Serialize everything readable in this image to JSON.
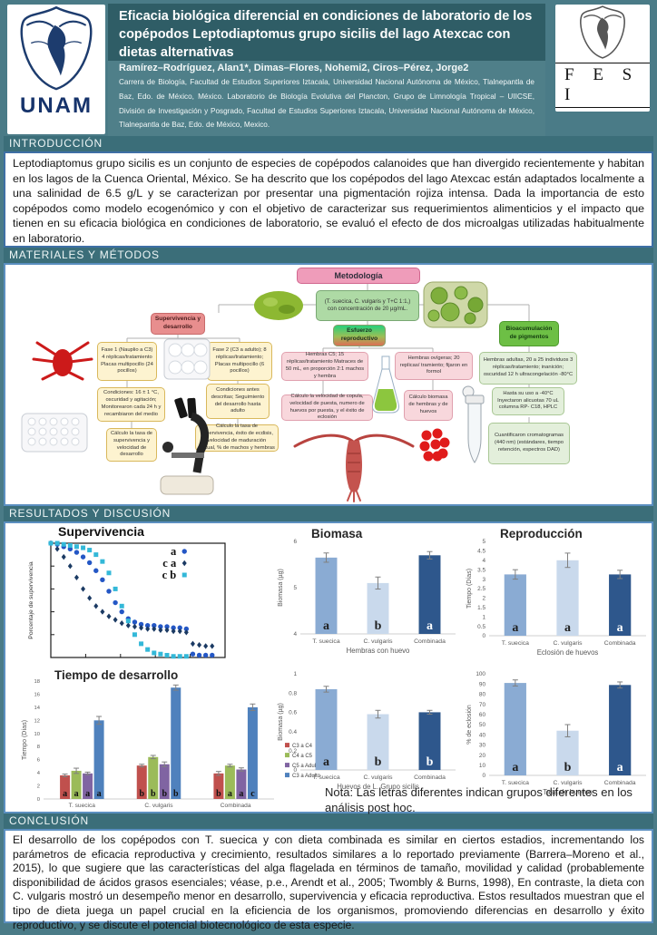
{
  "header": {
    "title": "Eficacia biológica diferencial en condiciones de laboratorio de los copépodos Leptodiaptomus grupo sicilis del lago Atexcac con dietas alternativas",
    "authors": "Ramírez–Rodríguez, Alan1*, Dimas–Flores, Nohemi2, Ciros–Pérez, Jorge2",
    "affiliation": "Carrera de Biología, Facultad de Estudios Superiores Iztacala, Universidad Nacional Autónoma de México, Tlalnepantla de Baz, Edo. de México, México. Laboratorio de Biología Evolutiva del Plancton, Grupo de Limnología Tropical – UIICSE, División de Investigación y Posgrado, Facultad de Estudios Superiores Iztacala, Universidad Nacional Autónoma de México, Tlalnepantla de Baz, Edo. de México, Mexico.",
    "logo_left_text": "UNAM",
    "logo_right_text": "F E S I"
  },
  "sections": {
    "intro": "INTRODUCCIÓN",
    "methods": "MATERIALES Y MÉTODOS",
    "results": "RESULTADOS Y DISCUSIÓN",
    "conclusion": "CONCLUSIÓN"
  },
  "intro_text": "Leptodiaptomus grupo sicilis es un conjunto de especies de copépodos calanoides que han divergido recientemente y habitan en los lagos de la Cuenca Oriental, México. Se ha descrito que los copépodos del lago Atexcac están adaptados localmente a una salinidad de 6.5 g/L y se caracterizan por presentar una pigmentación rojiza intensa. Dada la importancia de esto copépodos como modelo ecogenómico y con el objetivo de caracterizar sus requerimientos alimenticios y el impacto que tienen en su eficacia biológica en condiciones de laboratorio, se evaluó el efecto de dos microalgas utilizadas habitualmente en laboratorio.",
  "methods": {
    "metodologia": "Metodología",
    "dietas": "(T. suecica,  C. vulgaris y T+C 1:1,) con concentración de 20 µg/mL.",
    "supervivencia_titulo": "Supervivencia y desarrollo",
    "esfuerzo_titulo": "Esfuerzo reproductivo",
    "pigmentos_titulo": "Bioacumulación de pigmentos",
    "fase1": "Fase 1 (Nauplio a C3) 4 réplicas/tratamiento Placas multipocillo (24 pocillos)",
    "fase2": "Fase 2 (C3 a adulto); 8 réplicas/tratamiento; Placas multipocillo (6 pocillos)",
    "condiciones1": "Condiciones: 16 ± 1 °C, oscuridad y agitación; Monitorearon cada 24 h y recambiaron del medio",
    "condiciones2": "Condiciones antes descritas; Seguimiento del desarrollo hasta adulto",
    "calculo1": "Cálculo la tasa de supervivencia y velocidad de desarrollo",
    "calculo2": "Cálculo la tasa de supervivencia, éxito de ecdisis, velocidad de maduración sexual, % de machos y hembras",
    "hembras_c5": "Hembras C5; 15 réplicas/tratamiento Matraces de 50 mL, en proporción 2:1 machos y hembra",
    "calculo3": "Cálculo la velocidad de copula, velocidad de puesta, numero de huevos por puesta, y el éxito de eclosión",
    "hembras_ovigeras": "Hembras ovígeras; 20 replicas/ tramiento; fijaron en formol",
    "calculo4": "Cálculo biomasa de hembras y de huevos",
    "pigmentos1": "Hembras adultas,  20 a 25 individuos 3 réplicas/tratamiento; inanición; oscuridad 12 h  ultracongelación -80°C",
    "pigmentos2": "Hasta su uso a -40°C Inyectaron alicuotas 70 uL columna RP- C18, HPLC",
    "pigmentos3": "Cuantificaron cromatogramas (440 nm) (estándares, tiempo retención, espectros DAD)"
  },
  "results": {
    "note": "Nota: Las letras diferentes indican grupos diferentes en los análisis post hoc."
  },
  "conclusion_text": "El desarrollo de los copépodos con T. suecica y con dieta combinada es similar en ciertos estadios, incrementando los parámetros de eficacia reproductiva y crecimiento, resultados similares a lo reportado previamente (Barrera–Moreno et al., 2015), lo que sugiere que las características del alga flagelada en términos de tamaño, movilidad y calidad (probablemente disponibilidad de ácidos grasos esenciales; véase, p.e., Arendt et al., 2005; Twombly & Burns, 1998), En contraste, la dieta con C. vulgaris mostró un desempeño menor en desarrollo, supervivencia y eficacia reproductiva. Estos resultados muestran que el tipo de dieta juega un papel crucial en la eficiencia de los organismos, promoviendo diferencias en desarrollo y éxito reproductivo, y se discute el potencial biotecnológico de esta especie.",
  "chart_data": [
    {
      "type": "scatter",
      "title": "Supervivencia",
      "ylabel": "Porcentaje de supervivencia",
      "xlabel": "",
      "ylim": [
        0,
        100
      ],
      "xlim": [
        0,
        27
      ],
      "grid": false,
      "legend_position": "upper-right-inside",
      "legend": [
        {
          "label": "a",
          "marker": "circle",
          "color": "#2457c5"
        },
        {
          "label": "c a",
          "marker": "diamond",
          "color": "#1b3a63"
        },
        {
          "label": "c b",
          "marker": "square",
          "color": "#33b8d8"
        }
      ],
      "series": [
        {
          "name": "a",
          "marker": "circle",
          "color": "#2457c5",
          "x": [
            0,
            1,
            2,
            3,
            4,
            5,
            6,
            7,
            8,
            9,
            10,
            11,
            12,
            13,
            14,
            15,
            16,
            17,
            18,
            19,
            20,
            21,
            22,
            23,
            24,
            25
          ],
          "y": [
            100,
            99,
            97,
            95,
            92,
            88,
            83,
            76,
            68,
            58,
            48,
            40,
            34,
            31,
            29,
            28,
            28,
            27,
            27,
            26,
            26,
            25,
            3,
            2,
            2,
            2
          ]
        },
        {
          "name": "c a",
          "marker": "diamond",
          "color": "#1b3a63",
          "x": [
            0,
            1,
            2,
            3,
            4,
            5,
            6,
            7,
            8,
            9,
            10,
            11,
            12,
            13,
            14,
            15,
            16,
            17,
            18,
            19,
            20,
            21,
            22,
            23,
            24,
            25
          ],
          "y": [
            100,
            95,
            88,
            80,
            70,
            60,
            52,
            45,
            40,
            36,
            33,
            30,
            28,
            27,
            26,
            25,
            25,
            24,
            24,
            23,
            23,
            22,
            12,
            11,
            10,
            10
          ]
        },
        {
          "name": "c b",
          "marker": "square",
          "color": "#33b8d8",
          "x": [
            0,
            1,
            2,
            3,
            4,
            5,
            6,
            7,
            8,
            9,
            10,
            11,
            12,
            13,
            14,
            15,
            16,
            17,
            18,
            19,
            20,
            21
          ],
          "y": [
            100,
            100,
            99,
            98,
            97,
            96,
            94,
            90,
            84,
            74,
            60,
            45,
            32,
            20,
            12,
            7,
            4,
            3,
            2,
            1,
            1,
            1
          ]
        }
      ]
    },
    {
      "type": "bar",
      "title": "Biomasa",
      "ylabel": "Biomasa (µg)",
      "xlabel": "Hembras con huevo",
      "categories": [
        "T. suecica",
        "C. vulgaris",
        "Combinada"
      ],
      "values": [
        5.65,
        5.1,
        5.7
      ],
      "errors": [
        0.1,
        0.13,
        0.08
      ],
      "letters": [
        "a",
        "b",
        "a"
      ],
      "ylim": [
        4,
        6
      ],
      "yticks": [
        4,
        5,
        6
      ],
      "colors": [
        "#8aabd3",
        "#c9d9ec",
        "#2e578c"
      ]
    },
    {
      "type": "bar",
      "title": "Reproducción",
      "ylabel": "Tiempo (Días)",
      "xlabel": "Eclosión de huevos",
      "categories": [
        "T. suecica",
        "C. vulgaris",
        "Combinada"
      ],
      "values": [
        3.25,
        4.0,
        3.25
      ],
      "errors": [
        0.25,
        0.38,
        0.22
      ],
      "letters": [
        "a",
        "a",
        "a"
      ],
      "ylim": [
        0,
        5
      ],
      "yticks": [
        0,
        0.5,
        1,
        1.5,
        2,
        2.5,
        3,
        3.5,
        4,
        4.5,
        5
      ],
      "colors": [
        "#8aabd3",
        "#c9d9ec",
        "#2e578c"
      ]
    },
    {
      "type": "bar",
      "grouped": true,
      "title": "Tiempo de desarrollo",
      "ylabel": "Tiempo (Días)",
      "xlabel": "",
      "legend_position": "right",
      "categories": [
        "T. suecica",
        "C. vulgaris",
        "Combinada"
      ],
      "series": [
        {
          "name": "C3 a C4",
          "color": "#c0504d",
          "values": [
            3.6,
            5.1,
            3.9
          ],
          "errors": [
            0.2,
            0.2,
            0.3
          ],
          "letters": [
            "a",
            "b",
            "b"
          ]
        },
        {
          "name": "C4 a C5",
          "color": "#9bbb59",
          "values": [
            4.3,
            6.4,
            5.1
          ],
          "errors": [
            0.4,
            0.25,
            0.2
          ],
          "letters": [
            "a",
            "b",
            "a"
          ]
        },
        {
          "name": "C5 a Adulto",
          "color": "#8064a2",
          "values": [
            3.9,
            5.3,
            4.5
          ],
          "errors": [
            0.2,
            0.35,
            0.25
          ],
          "letters": [
            "a",
            "b",
            "a"
          ]
        },
        {
          "name": "C3 a Adulto",
          "color": "#4f81bd",
          "values": [
            12.0,
            17.0,
            14.0
          ],
          "errors": [
            0.6,
            0.4,
            0.5
          ],
          "letters": [
            "a",
            "b",
            "c"
          ]
        }
      ],
      "ylim": [
        0,
        18
      ],
      "yticks": [
        0,
        2,
        4,
        6,
        8,
        10,
        12,
        14,
        16,
        18
      ]
    },
    {
      "type": "bar",
      "title": "",
      "ylabel": "Biomasa (µg)",
      "xlabel": "Huevos de L. Grupo sicilis",
      "categories": [
        "T. suecica",
        "C. vulgaris",
        "Combinada"
      ],
      "values": [
        0.84,
        0.58,
        0.6
      ],
      "errors": [
        0.03,
        0.04,
        0.02
      ],
      "letters": [
        "a",
        "b",
        "b"
      ],
      "ylim": [
        0,
        1
      ],
      "yticks": [
        0,
        0.2,
        0.4,
        0.6,
        0.8,
        1
      ],
      "colors": [
        "#8aabd3",
        "#c9d9ec",
        "#2e578c"
      ]
    },
    {
      "type": "bar",
      "title": "",
      "ylabel": "% de eclosión",
      "xlabel": "Tasa de huevos",
      "categories": [
        "T. suecica",
        "C. vulgaris",
        "Combinada"
      ],
      "values": [
        91,
        44,
        89
      ],
      "errors": [
        3,
        6,
        3
      ],
      "letters": [
        "a",
        "b",
        "a"
      ],
      "ylim": [
        0,
        100
      ],
      "yticks": [
        0,
        10,
        20,
        30,
        40,
        50,
        60,
        70,
        80,
        90,
        100
      ],
      "colors": [
        "#8aabd3",
        "#c9d9ec",
        "#2e578c"
      ]
    }
  ]
}
